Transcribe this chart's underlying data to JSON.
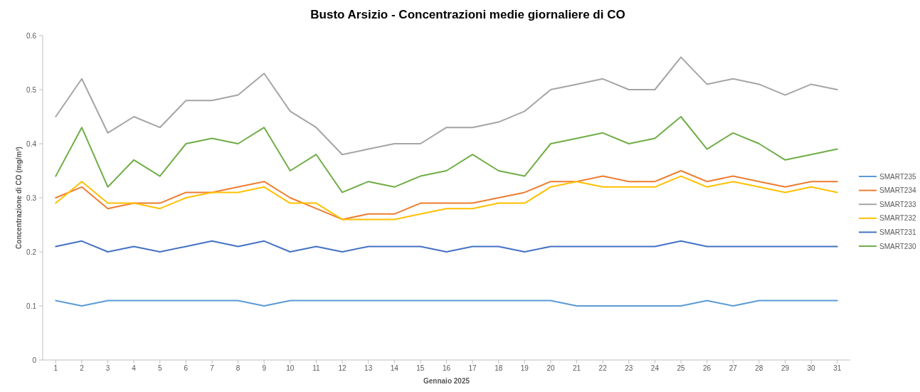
{
  "chart_data": {
    "type": "line",
    "title": "Busto Arsizio - Concentrazioni medie giornaliere di CO",
    "xlabel": "Gennaio 2025",
    "ylabel": "Concentrazione di CO (mg/m³)",
    "x": [
      1,
      2,
      3,
      4,
      5,
      6,
      7,
      8,
      9,
      10,
      11,
      12,
      13,
      14,
      15,
      16,
      17,
      18,
      19,
      20,
      21,
      22,
      23,
      24,
      25,
      26,
      27,
      28,
      29,
      30,
      31
    ],
    "xlim": [
      0.5,
      31.5
    ],
    "xticks": [
      1,
      2,
      3,
      4,
      5,
      6,
      7,
      8,
      9,
      10,
      11,
      12,
      13,
      14,
      15,
      16,
      17,
      18,
      19,
      20,
      21,
      22,
      23,
      24,
      25,
      26,
      27,
      28,
      29,
      30,
      31
    ],
    "ylim": [
      0,
      0.6
    ],
    "yticks": [
      0,
      0.1,
      0.2,
      0.3,
      0.4,
      0.5,
      0.6
    ],
    "grid": false,
    "legend": "right",
    "marker": "none",
    "line_style": "solid",
    "series": [
      {
        "name": "SMART235",
        "color": "#5b9bd5",
        "values": [
          0.11,
          0.1,
          0.11,
          0.11,
          0.11,
          0.11,
          0.11,
          0.11,
          0.1,
          0.11,
          0.11,
          0.11,
          0.11,
          0.11,
          0.11,
          0.11,
          0.11,
          0.11,
          0.11,
          0.11,
          0.1,
          0.1,
          0.1,
          0.1,
          0.1,
          0.11,
          0.1,
          0.11,
          0.11,
          0.11,
          0.11
        ]
      },
      {
        "name": "SMART234",
        "color": "#ed7d31",
        "values": [
          0.3,
          0.32,
          0.28,
          0.29,
          0.29,
          0.31,
          0.31,
          0.32,
          0.33,
          0.3,
          0.28,
          0.26,
          0.27,
          0.27,
          0.29,
          0.29,
          0.29,
          0.3,
          0.31,
          0.33,
          0.33,
          0.34,
          0.33,
          0.33,
          0.35,
          0.33,
          0.34,
          0.33,
          0.32,
          0.33,
          0.33
        ]
      },
      {
        "name": "SMART233",
        "color": "#a5a5a5",
        "values": [
          0.45,
          0.52,
          0.42,
          0.45,
          0.43,
          0.48,
          0.48,
          0.49,
          0.53,
          0.46,
          0.43,
          0.38,
          0.39,
          0.4,
          0.4,
          0.43,
          0.43,
          0.44,
          0.46,
          0.5,
          0.51,
          0.52,
          0.5,
          0.5,
          0.56,
          0.51,
          0.52,
          0.51,
          0.49,
          0.51,
          0.5
        ]
      },
      {
        "name": "SMART232",
        "color": "#ffc000",
        "values": [
          0.29,
          0.33,
          0.29,
          0.29,
          0.28,
          0.3,
          0.31,
          0.31,
          0.32,
          0.29,
          0.29,
          0.26,
          0.26,
          0.26,
          0.27,
          0.28,
          0.28,
          0.29,
          0.29,
          0.32,
          0.33,
          0.32,
          0.32,
          0.32,
          0.34,
          0.32,
          0.33,
          0.32,
          0.31,
          0.32,
          0.31
        ]
      },
      {
        "name": "SMART231",
        "color": "#4472c4",
        "values": [
          0.21,
          0.22,
          0.2,
          0.21,
          0.2,
          0.21,
          0.22,
          0.21,
          0.22,
          0.2,
          0.21,
          0.2,
          0.21,
          0.21,
          0.21,
          0.2,
          0.21,
          0.21,
          0.2,
          0.21,
          0.21,
          0.21,
          0.21,
          0.21,
          0.22,
          0.21,
          0.21,
          0.21,
          0.21,
          0.21,
          0.21
        ]
      },
      {
        "name": "SMART230",
        "color": "#70ad47",
        "values": [
          0.34,
          0.43,
          0.32,
          0.37,
          0.34,
          0.4,
          0.41,
          0.4,
          0.43,
          0.35,
          0.38,
          0.31,
          0.33,
          0.32,
          0.34,
          0.35,
          0.38,
          0.35,
          0.34,
          0.4,
          0.41,
          0.42,
          0.4,
          0.41,
          0.45,
          0.39,
          0.42,
          0.4,
          0.37,
          0.38,
          0.39
        ]
      }
    ]
  }
}
